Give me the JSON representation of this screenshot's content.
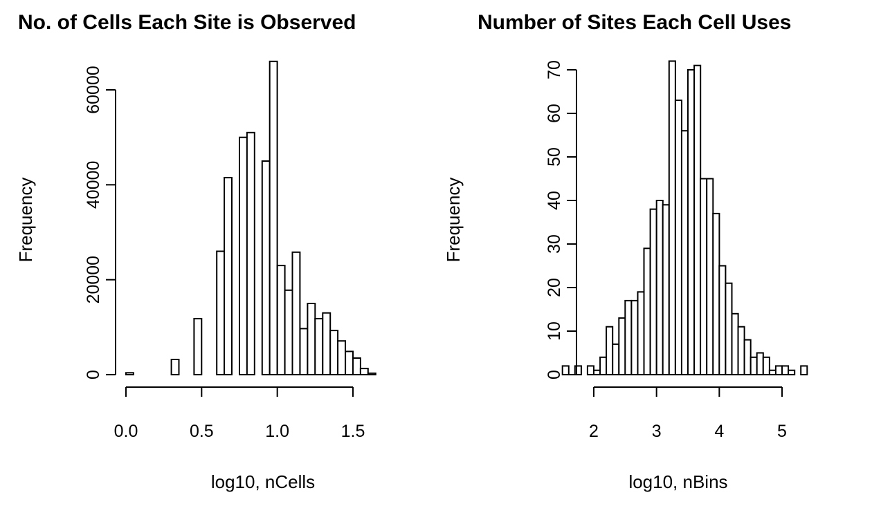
{
  "chart_data": [
    {
      "type": "bar",
      "title": "No. of Cells Each Site is Observed",
      "xlabel": "log10, nCells",
      "ylabel": "Frequency",
      "xlim": [
        0,
        1.7
      ],
      "ylim": [
        0,
        66000
      ],
      "x_ticks": [
        "0.0",
        "0.5",
        "1.0",
        "1.5"
      ],
      "x_tick_values": [
        0,
        0.5,
        1.0,
        1.5
      ],
      "y_ticks": [
        "0",
        "20000",
        "40000",
        "60000"
      ],
      "y_tick_values": [
        0,
        20000,
        40000,
        60000
      ],
      "bins": [
        [
          0.0,
          0.05,
          400
        ],
        [
          0.05,
          0.1,
          0
        ],
        [
          0.1,
          0.15,
          0
        ],
        [
          0.15,
          0.2,
          0
        ],
        [
          0.2,
          0.25,
          0
        ],
        [
          0.25,
          0.3,
          0
        ],
        [
          0.3,
          0.35,
          3200
        ],
        [
          0.35,
          0.4,
          0
        ],
        [
          0.4,
          0.45,
          0
        ],
        [
          0.45,
          0.5,
          11800
        ],
        [
          0.5,
          0.55,
          0
        ],
        [
          0.55,
          0.6,
          0
        ],
        [
          0.6,
          0.65,
          26000
        ],
        [
          0.65,
          0.7,
          41500
        ],
        [
          0.7,
          0.75,
          0
        ],
        [
          0.75,
          0.8,
          50000
        ],
        [
          0.8,
          0.85,
          51000
        ],
        [
          0.85,
          0.9,
          0
        ],
        [
          0.9,
          0.95,
          45000
        ],
        [
          0.95,
          1.0,
          66000
        ],
        [
          1.0,
          1.05,
          23000
        ],
        [
          1.05,
          1.1,
          17800
        ],
        [
          1.1,
          1.15,
          25800
        ],
        [
          1.15,
          1.2,
          9700
        ],
        [
          1.2,
          1.25,
          15000
        ],
        [
          1.25,
          1.3,
          11800
        ],
        [
          1.3,
          1.35,
          13000
        ],
        [
          1.35,
          1.4,
          9300
        ],
        [
          1.4,
          1.45,
          7100
        ],
        [
          1.45,
          1.5,
          4900
        ],
        [
          1.5,
          1.55,
          3500
        ],
        [
          1.55,
          1.6,
          1300
        ],
        [
          1.6,
          1.65,
          300
        ]
      ]
    },
    {
      "type": "bar",
      "title": "Number of Sites Each Cell Uses",
      "xlabel": "log10, nBins",
      "ylabel": "Frequency",
      "xlim": [
        1.35,
        5.35
      ],
      "ylim": [
        0,
        72
      ],
      "x_ticks": [
        "2",
        "3",
        "4",
        "5"
      ],
      "x_tick_values": [
        2,
        3,
        4,
        5
      ],
      "y_ticks": [
        "0",
        "10",
        "20",
        "30",
        "40",
        "50",
        "60",
        "70"
      ],
      "y_tick_values": [
        0,
        10,
        20,
        30,
        40,
        50,
        60,
        70
      ],
      "bins": [
        [
          1.5,
          1.6,
          2
        ],
        [
          1.6,
          1.7,
          0
        ],
        [
          1.7,
          1.8,
          2
        ],
        [
          1.8,
          1.9,
          0
        ],
        [
          1.9,
          2.0,
          2
        ],
        [
          2.0,
          2.1,
          1
        ],
        [
          2.1,
          2.2,
          4
        ],
        [
          2.2,
          2.3,
          11
        ],
        [
          2.3,
          2.4,
          7
        ],
        [
          2.4,
          2.5,
          13
        ],
        [
          2.5,
          2.6,
          17
        ],
        [
          2.6,
          2.7,
          17
        ],
        [
          2.7,
          2.8,
          19
        ],
        [
          2.8,
          2.9,
          29
        ],
        [
          2.9,
          3.0,
          38
        ],
        [
          3.0,
          3.1,
          40
        ],
        [
          3.1,
          3.2,
          39
        ],
        [
          3.2,
          3.3,
          72
        ],
        [
          3.3,
          3.4,
          63
        ],
        [
          3.4,
          3.5,
          56
        ],
        [
          3.5,
          3.6,
          70
        ],
        [
          3.6,
          3.7,
          71
        ],
        [
          3.7,
          3.8,
          45
        ],
        [
          3.8,
          3.9,
          45
        ],
        [
          3.9,
          4.0,
          37
        ],
        [
          4.0,
          4.1,
          25
        ],
        [
          4.1,
          4.2,
          21
        ],
        [
          4.2,
          4.3,
          14
        ],
        [
          4.3,
          4.4,
          11
        ],
        [
          4.4,
          4.5,
          8
        ],
        [
          4.5,
          4.6,
          4
        ],
        [
          4.6,
          4.7,
          5
        ],
        [
          4.7,
          4.8,
          4
        ],
        [
          4.8,
          4.9,
          1
        ],
        [
          4.9,
          5.0,
          2
        ],
        [
          5.0,
          5.1,
          2
        ],
        [
          5.1,
          5.2,
          1
        ],
        [
          5.2,
          5.3,
          0
        ],
        [
          5.3,
          5.4,
          2
        ]
      ]
    }
  ]
}
